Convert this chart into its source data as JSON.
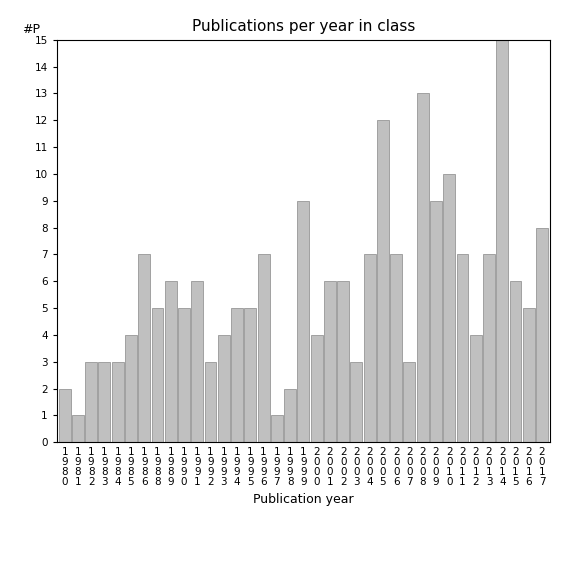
{
  "title": "Publications per year in class",
  "xlabel": "Publication year",
  "ylabel": "#P",
  "years": [
    1980,
    1981,
    1982,
    1983,
    1984,
    1985,
    1986,
    1988,
    1989,
    1990,
    1991,
    1992,
    1993,
    1994,
    1995,
    1996,
    1997,
    1998,
    1999,
    2000,
    2001,
    2002,
    2003,
    2004,
    2005,
    2006,
    2007,
    2008,
    2009,
    2010,
    2011,
    2012,
    2013,
    2014,
    2015,
    2016,
    2017
  ],
  "values": [
    2,
    1,
    3,
    3,
    3,
    4,
    7,
    5,
    6,
    5,
    6,
    3,
    4,
    5,
    5,
    7,
    1,
    2,
    9,
    4,
    6,
    6,
    3,
    7,
    12,
    7,
    3,
    13,
    9,
    10,
    7,
    4,
    7,
    15,
    6,
    5,
    8
  ],
  "bar_color": "#c0c0c0",
  "bar_edge_color": "#888888",
  "ylim": [
    0,
    15
  ],
  "yticks": [
    0,
    1,
    2,
    3,
    4,
    5,
    6,
    7,
    8,
    9,
    10,
    11,
    12,
    13,
    14,
    15
  ],
  "background_color": "#ffffff",
  "title_fontsize": 11,
  "label_fontsize": 9,
  "tick_fontsize": 7.5
}
